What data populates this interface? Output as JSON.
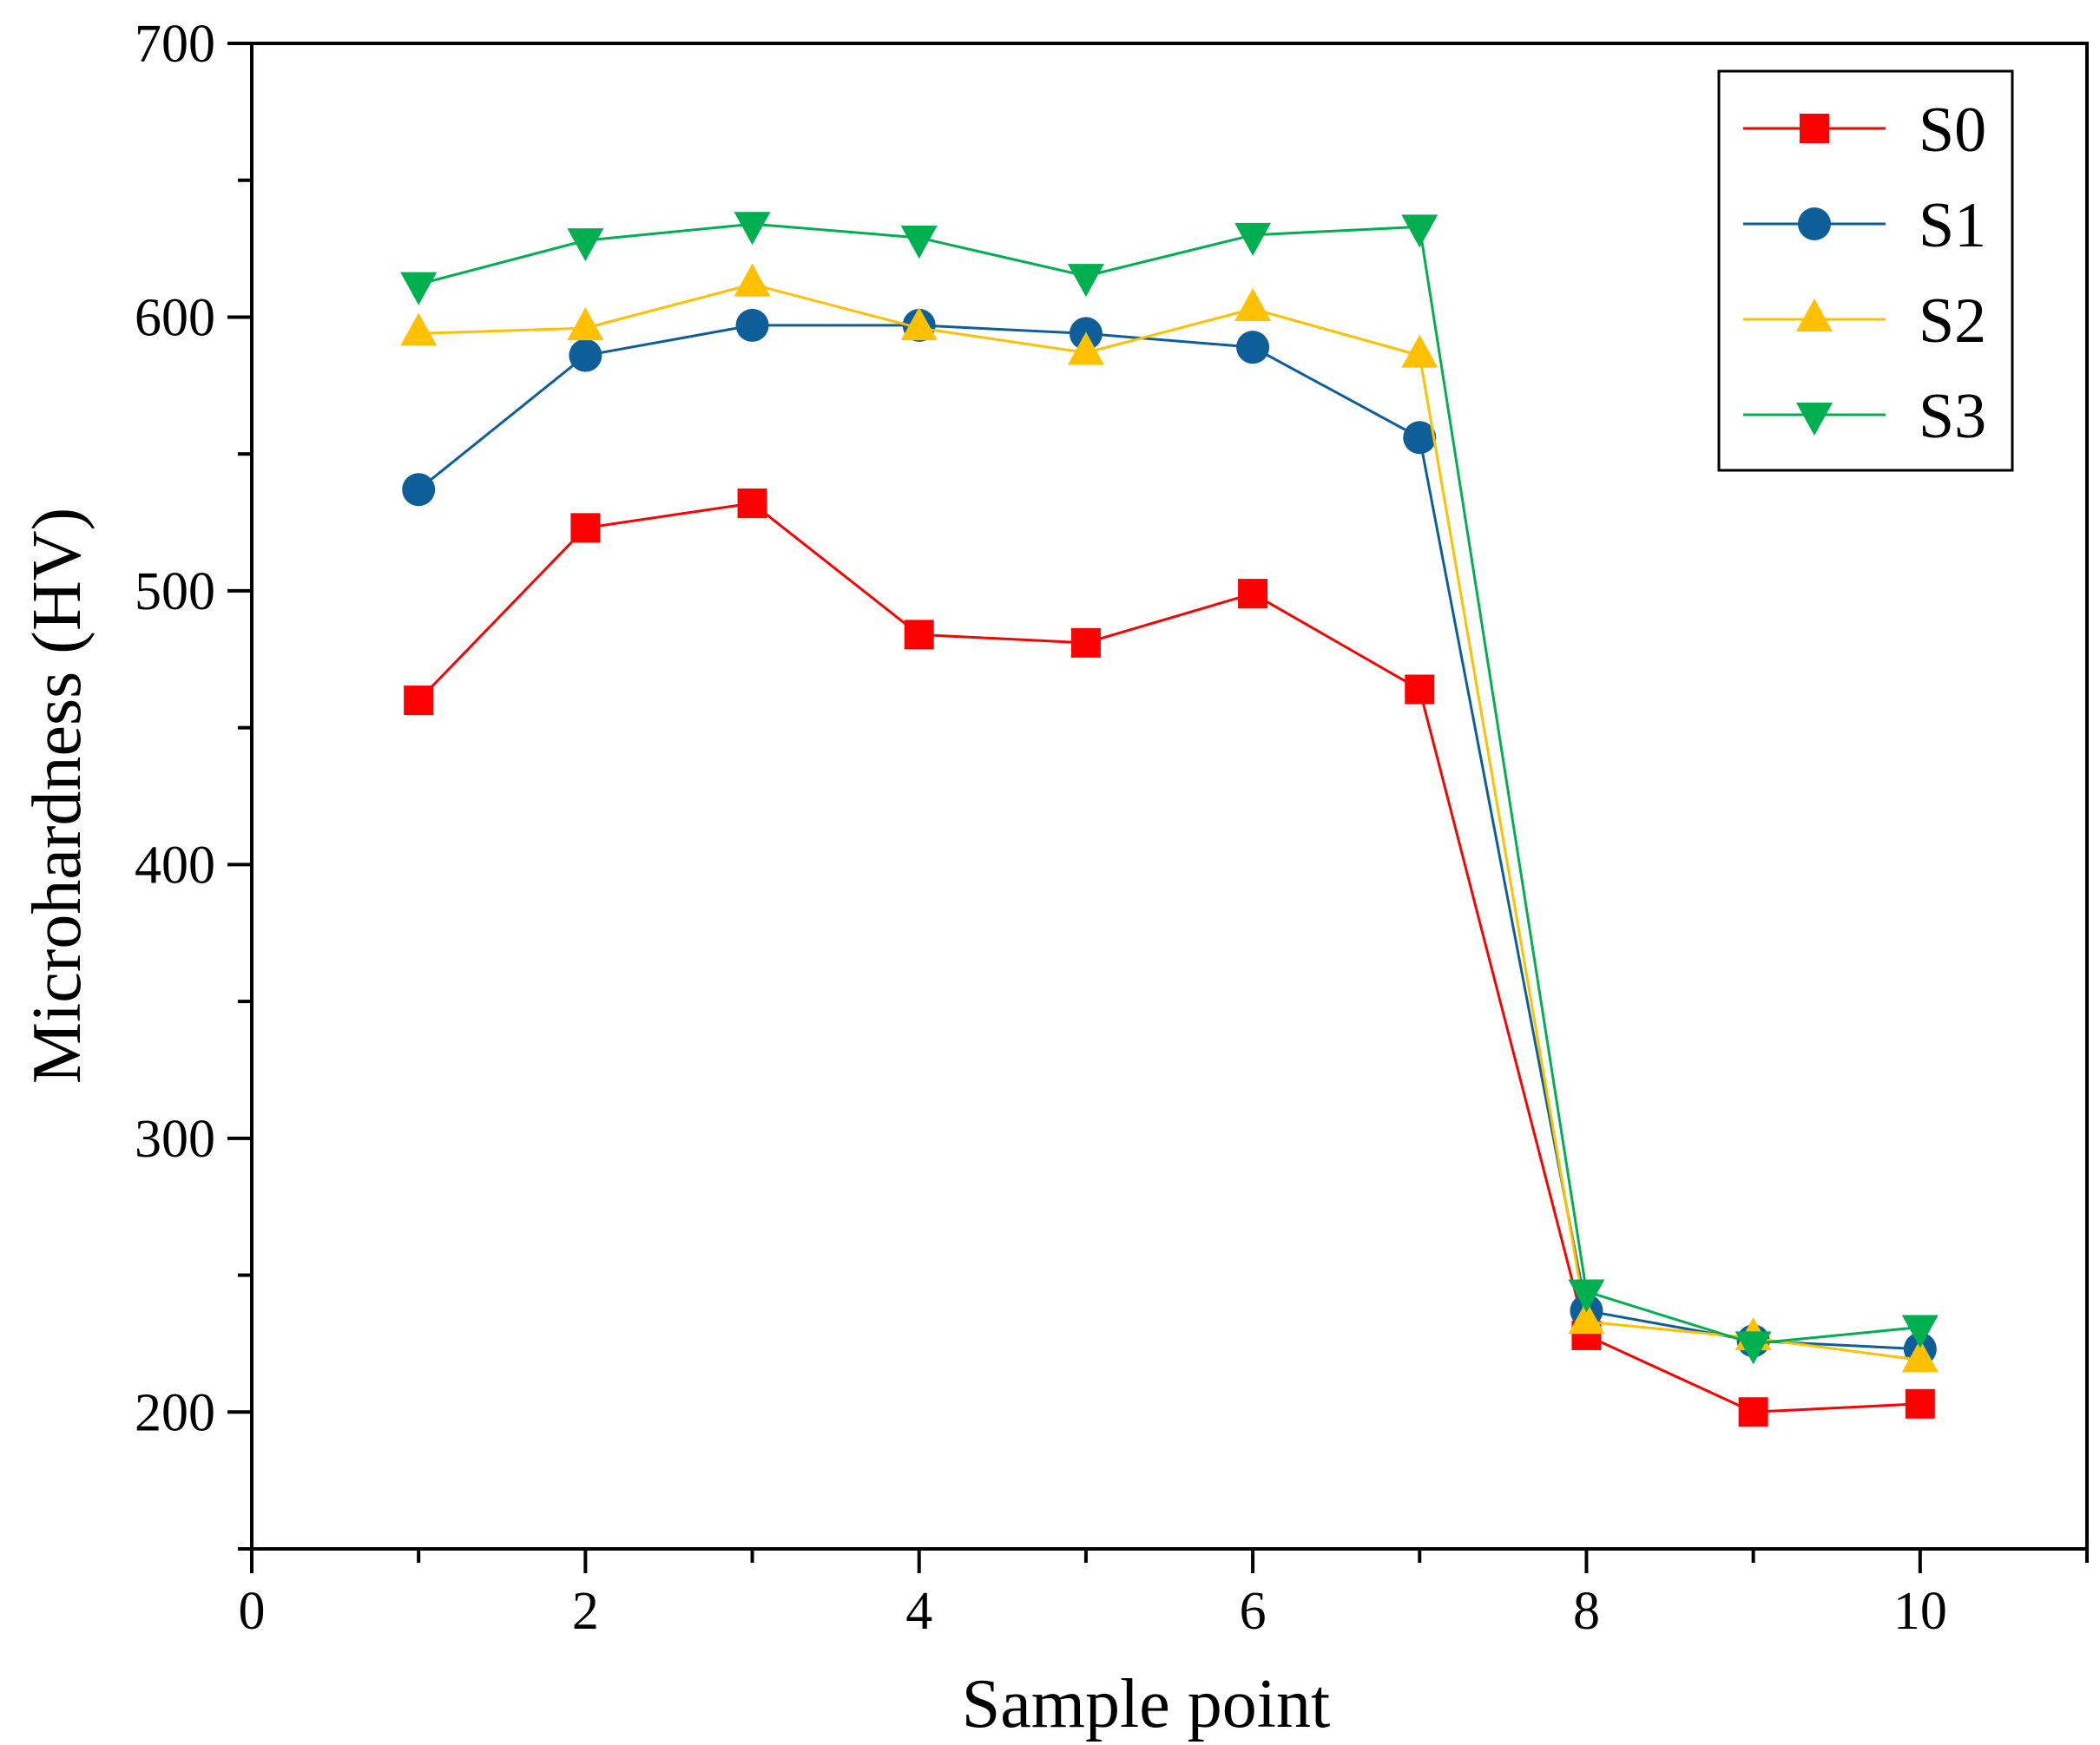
{
  "chart_data": {
    "type": "line",
    "title": "",
    "xlabel": "Sample point",
    "ylabel": "Microhardness (HV)",
    "xlim": [
      0,
      11
    ],
    "ylim": [
      150,
      700
    ],
    "xticks": [
      0,
      2,
      4,
      6,
      8,
      10
    ],
    "yticks": [
      200,
      300,
      400,
      500,
      600,
      700
    ],
    "grid": false,
    "legend": "top-right",
    "x": [
      1,
      2,
      3,
      4,
      5,
      6,
      7,
      8,
      9,
      10
    ],
    "series": [
      {
        "name": "S0",
        "marker": "square",
        "color": "#ff0000",
        "values": [
          460,
          523,
          532,
          484,
          481,
          499,
          464,
          228,
          200,
          203
        ]
      },
      {
        "name": "S1",
        "marker": "circle",
        "color": "#0e5f99",
        "values": [
          537,
          586,
          597,
          597,
          594,
          589,
          556,
          237,
          226,
          223
        ]
      },
      {
        "name": "S2",
        "marker": "triangle-up",
        "color": "#ffc000",
        "values": [
          594,
          596,
          612,
          596,
          587,
          603,
          586,
          233,
          227,
          219
        ]
      },
      {
        "name": "S3",
        "marker": "triangle-down",
        "color": "#00b050",
        "values": [
          612,
          628,
          634,
          629,
          615,
          630,
          633,
          244,
          225,
          231
        ]
      }
    ]
  }
}
